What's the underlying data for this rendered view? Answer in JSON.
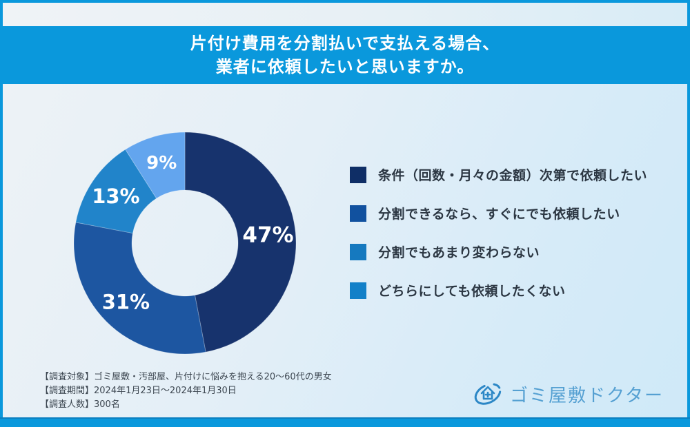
{
  "title": {
    "line1": "片付け費用を分割払いで支払える場合、",
    "line2": "業者に依頼したいと思いますか。"
  },
  "chart_data": {
    "type": "pie",
    "donut": true,
    "start_angle_deg": 0,
    "direction": "clockwise",
    "unit": "%",
    "categories": [
      "条件（回数・月々の金額）次第で依頼したい",
      "分割できるなら、すぐにでも依頼したい",
      "分割でもあまり変わらない",
      "どちらにしても依頼したくない"
    ],
    "values": [
      47,
      31,
      13,
      9
    ],
    "data_labels": [
      "47%",
      "31%",
      "13%",
      "9%"
    ],
    "slice_colors": [
      "#17336d",
      "#1d56a1",
      "#2184ca",
      "#63a5ee"
    ],
    "legend_colors": [
      "#0f2e66",
      "#11519f",
      "#1579bf",
      "#1280c8"
    ],
    "legend_position": "right",
    "hole_ratio": 0.48,
    "title": "片付け費用を分割払いで支払える場合、業者に依頼したいと思いますか。"
  },
  "legend": {
    "items": [
      {
        "label": "条件（回数・月々の金額）次第で依頼したい",
        "color": "#0f2e66"
      },
      {
        "label": "分割できるなら、すぐにでも依頼したい",
        "color": "#11519f"
      },
      {
        "label": "分割でもあまり変わらない",
        "color": "#1579bf"
      },
      {
        "label": "どちらにしても依頼したくない",
        "color": "#1280c8"
      }
    ]
  },
  "footer": {
    "lines": [
      "【調査対象】ゴミ屋敷・汚部屋、片付けに悩みを抱える20〜60代の男女",
      "【調査期間】2024年1月23日〜2024年1月30日",
      "【調査人数】300名"
    ]
  },
  "logo": {
    "text": "ゴミ屋敷ドクター"
  },
  "colors": {
    "frame_blue": "#0a98dc",
    "bottom_edge_blue": "#0b7fc0",
    "legend_text": "#2c3743",
    "footer_text": "#3c4650",
    "logo_icon": "#2c87c6",
    "logo_text": "#55a0d2"
  }
}
